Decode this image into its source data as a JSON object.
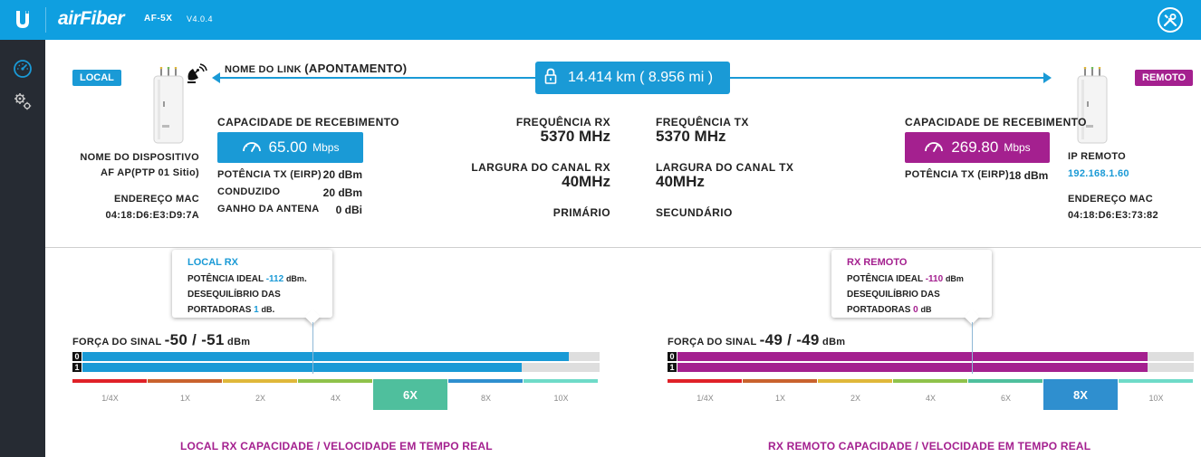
{
  "header": {
    "brand": "airFiber",
    "model": "AF-5X",
    "version": "V4.0.4"
  },
  "colors": {
    "header_bg": "#0f9fe0",
    "local_accent": "#1a9ad6",
    "remote_accent": "#a4208f",
    "sidebar_bg": "#262b33"
  },
  "link": {
    "name_label": "NOME DO LINK",
    "name_value": "(APONTAMENTO)",
    "distance": "14.414 km ( 8.956 mi )"
  },
  "local": {
    "tag": "LOCAL",
    "device_name_label": "NOME DO DISPOSITIVO",
    "device_name": "AF AP(PTP 01 Sitio)",
    "mac_label": "ENDEREÇO MAC",
    "mac": "04:18:D6:E3:D9:7A",
    "capacity_label": "CAPACIDADE DE RECEBIMENTO",
    "capacity_value": "65.00",
    "capacity_unit": "Mbps",
    "tx_power_label": "POTÊNCIA TX (EIRP)",
    "tx_power": "20 dBm",
    "conducted_label": "CONDUZIDO",
    "conducted": "20 dBm",
    "antenna_gain_label": "GANHO DA ANTENA",
    "antenna_gain": "0 dBi"
  },
  "radio": {
    "rx_freq_label": "FREQUÊNCIA RX",
    "rx_freq": "5370 MHz",
    "rx_width_label": "LARGURA DO CANAL RX",
    "rx_width": "40MHz",
    "tx_freq_label": "FREQUÊNCIA TX",
    "tx_freq": "5370 MHz",
    "tx_width_label": "LARGURA DO CANAL TX",
    "tx_width": "40MHz",
    "primary": "PRIMÁRIO",
    "secondary": "SECUNDÁRIO"
  },
  "remote": {
    "tag": "REMOTO",
    "capacity_label": "CAPACIDADE DE RECEBIMENTO",
    "capacity_value": "269.80",
    "capacity_unit": "Mbps",
    "tx_power_label": "POTÊNCIA TX (EIRP)",
    "tx_power": "18 dBm",
    "ip_label": "IP REMOTO",
    "ip": "192.168.1.60",
    "mac_label": "ENDEREÇO MAC",
    "mac": "04:18:D6:E3:73:82"
  },
  "local_rx": {
    "tooltip_title": "LOCAL RX",
    "ideal_label": "POTÊNCIA IDEAL",
    "ideal_value": "-112",
    "ideal_unit": "dBm",
    "ideal_suffix": ".",
    "imbalance_line1": "DESEQUILÍBRIO DAS",
    "imbalance_line2": "PORTADORAS",
    "imbalance_value": "1",
    "imbalance_unit": "dB",
    "imbalance_suffix": ".",
    "signal_label": "FORÇA DO SINAL",
    "signal_value": "-50 / -51",
    "signal_unit": "dBm",
    "chain0": "0",
    "chain1": "1",
    "chain0_fill": 0.94,
    "chain1_fill": 0.85,
    "scale": [
      "1/4X",
      "1X",
      "2X",
      "4X",
      "6X",
      "8X",
      "10X"
    ],
    "active_index": 4,
    "active_label": "6X",
    "footer": "LOCAL RX  CAPACIDADE / VELOCIDADE EM TEMPO REAL"
  },
  "remote_rx": {
    "tooltip_title": "RX REMOTO",
    "ideal_label": "POTÊNCIA IDEAL",
    "ideal_value": "-110",
    "ideal_unit": "dBm",
    "imbalance_line1": "DESEQUILÍBRIO DAS",
    "imbalance_line2": "PORTADORAS",
    "imbalance_value": "0",
    "imbalance_unit": "dB",
    "signal_label": "FORÇA DO SINAL",
    "signal_value": "-49 / -49",
    "signal_unit": "dBm",
    "chain0": "0",
    "chain1": "1",
    "chain0_fill": 0.91,
    "chain1_fill": 0.91,
    "scale": [
      "1/4X",
      "1X",
      "2X",
      "4X",
      "6X",
      "8X",
      "10X"
    ],
    "active_index": 5,
    "active_label": "8X",
    "footer": "RX REMOTO  CAPACIDADE / VELOCIDADE EM TEMPO REAL"
  },
  "scale_colors": [
    "#e02128",
    "#c9622e",
    "#e0b83a",
    "#8fc24b",
    "#4fbf9d",
    "#2f8fcf",
    "#6fdbc8"
  ],
  "icons": {
    "logo": "ubiquiti-u-logo",
    "tools": "tools-icon",
    "dashboard": "speedometer-icon",
    "settings": "gears-icon",
    "satellite": "satellite-dish-icon",
    "lock": "lock-icon",
    "gauge": "gauge-icon"
  }
}
